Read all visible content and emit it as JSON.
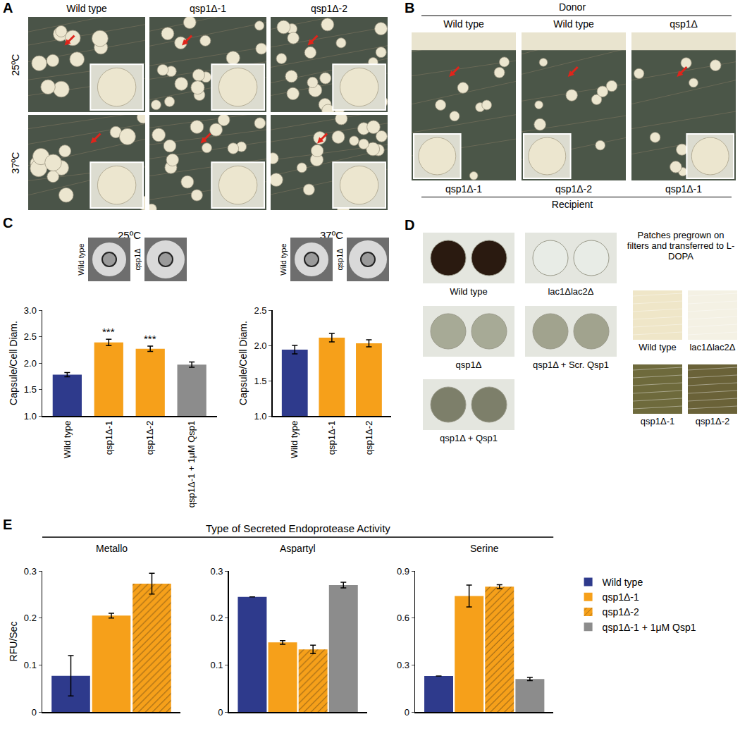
{
  "panels": {
    "A": {
      "label": "A",
      "columns": [
        "Wild type",
        "qsp1Δ-1",
        "qsp1Δ-2"
      ],
      "rows": [
        "25ºC",
        "37ºC"
      ]
    },
    "B": {
      "label": "B",
      "top_header": "Donor",
      "donors": [
        "Wild type",
        "Wild type",
        "qsp1Δ"
      ],
      "recipients": [
        "qsp1Δ-1",
        "qsp1Δ-2",
        "qsp1Δ-1"
      ],
      "bottom_header": "Recipient"
    },
    "C": {
      "label": "C",
      "micrograph_strains": [
        [
          "Wild type",
          "qsp1Δ"
        ],
        [
          "Wild type",
          "qsp1Δ"
        ]
      ]
    },
    "D": {
      "label": "D",
      "plates": [
        "Wild type",
        "lac1Δlac2Δ",
        "qsp1Δ",
        "qsp1Δ + Scr. Qsp1",
        "qsp1Δ + Qsp1"
      ],
      "filter_note": "Patches pregrown on filters and transferred to L-DOPA",
      "filters": [
        "Wild type",
        "lac1Δlac2Δ",
        "qsp1Δ-1",
        "qsp1Δ-2"
      ]
    },
    "E": {
      "label": "E",
      "header": "Type of Secreted Endoprotease Activity"
    }
  },
  "chart_data": [
    {
      "type": "bar",
      "title": "25ºC",
      "y_title": "Capsule/Cell Diam.",
      "categories": [
        "Wild type",
        "qsp1Δ-1",
        "qsp1Δ-2",
        "qsp1Δ-1 + 1μM Qsp1"
      ],
      "values": [
        1.78,
        2.39,
        2.27,
        1.97
      ],
      "errors": [
        0.04,
        0.06,
        0.05,
        0.05
      ],
      "colors": [
        "#2e3a8c",
        "#f6a01a",
        "#f6a01a",
        "#8c8c8c"
      ],
      "significance": [
        null,
        "***",
        "***",
        null
      ],
      "ylim": [
        1,
        3
      ],
      "yticks": [
        {
          "value": 1,
          "label": "1.0"
        },
        {
          "value": 1.5,
          "label": "1.5"
        },
        {
          "value": 2,
          "label": "2.0"
        },
        {
          "value": 2.5,
          "label": "2.5"
        },
        {
          "value": 3,
          "label": "3.0"
        }
      ]
    },
    {
      "type": "bar",
      "title": "37ºC",
      "y_title": "Capsule/Cell Diam.",
      "categories": [
        "Wild type",
        "qsp1Δ-1",
        "qsp1Δ-2"
      ],
      "values": [
        1.94,
        2.11,
        2.03
      ],
      "errors": [
        0.06,
        0.06,
        0.05
      ],
      "colors": [
        "#2e3a8c",
        "#f6a01a",
        "#f6a01a"
      ],
      "ylim": [
        1,
        2.5
      ],
      "yticks": [
        {
          "value": 1,
          "label": "1.0"
        },
        {
          "value": 1.5,
          "label": "1.5"
        },
        {
          "value": 2,
          "label": "2.0"
        },
        {
          "value": 2.5,
          "label": "2.5"
        }
      ]
    },
    {
      "type": "bar",
      "title": "Metallo",
      "y_title": "RFU/Sec",
      "categories": [
        null
      ],
      "tick_labels": "y",
      "series": [
        {
          "name": "Wild type",
          "color": "#2e3a8c",
          "values": [
            0.077
          ],
          "errors": [
            0.043
          ]
        },
        {
          "name": "qsp1Δ-1",
          "color": "#f6a01a",
          "values": [
            0.205
          ],
          "errors": [
            0.005
          ]
        },
        {
          "name": "qsp1Δ-2",
          "color": "#f6a01a",
          "marker": "hatched",
          "values": [
            0.273
          ],
          "errors": [
            0.022
          ]
        }
      ],
      "ylim": [
        0,
        0.3
      ],
      "yticks": [
        0,
        0.1,
        0.2,
        0.3
      ]
    },
    {
      "type": "bar",
      "title": "Aspartyl",
      "categories": [
        null
      ],
      "tick_labels": "y",
      "series": [
        {
          "name": "Wild type",
          "color": "#2e3a8c",
          "values": [
            0.245
          ],
          "errors": [
            null
          ]
        },
        {
          "name": "qsp1Δ-1",
          "color": "#f6a01a",
          "values": [
            0.148
          ],
          "errors": [
            0.004
          ]
        },
        {
          "name": "qsp1Δ-2",
          "color": "#f6a01a",
          "marker": "hatched",
          "values": [
            0.133
          ],
          "errors": [
            0.009
          ]
        },
        {
          "name": "qsp1Δ-1 + 1μM Qsp1",
          "color": "#8c8c8c",
          "values": [
            0.27
          ],
          "errors": [
            0.006
          ]
        }
      ],
      "ylim": [
        0,
        0.3
      ],
      "yticks": [
        0,
        0.1,
        0.2,
        0.3
      ]
    },
    {
      "type": "bar",
      "title": "Serine",
      "categories": [
        null
      ],
      "tick_labels": "y",
      "legend": "right",
      "series": [
        {
          "name": "Wild type",
          "color": "#2e3a8c",
          "values": [
            0.23
          ],
          "errors": [
            null
          ]
        },
        {
          "name": "qsp1Δ-1",
          "color": "#f6a01a",
          "values": [
            0.74
          ],
          "errors": [
            0.07
          ]
        },
        {
          "name": "qsp1Δ-2",
          "color": "#f6a01a",
          "marker": "hatched",
          "values": [
            0.8
          ],
          "errors": [
            0.012
          ]
        },
        {
          "name": "qsp1Δ-1 + 1μM Qsp1",
          "color": "#8c8c8c",
          "values": [
            0.21
          ],
          "errors": [
            0.01
          ]
        }
      ],
      "ylim": [
        0,
        0.9
      ],
      "yticks": [
        0,
        0.3,
        0.6,
        0.9
      ]
    }
  ]
}
